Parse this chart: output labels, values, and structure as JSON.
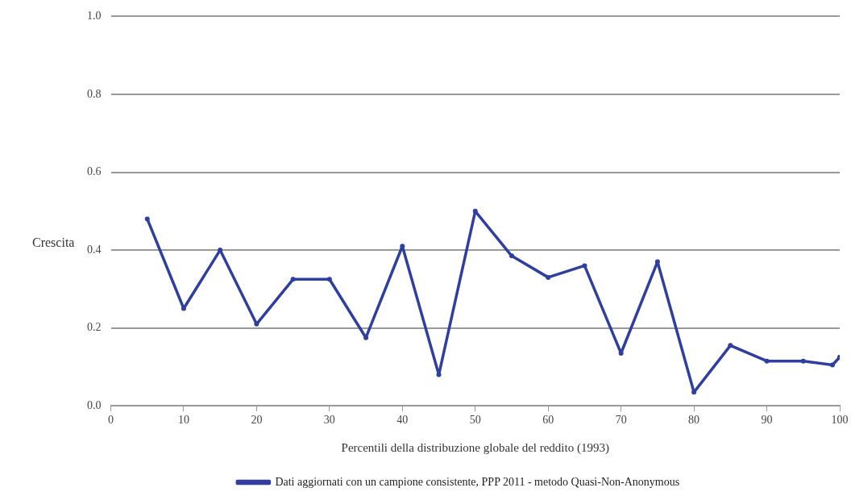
{
  "chart_data": {
    "type": "line",
    "xlabel": "Percentili della distribuzione globale del reddito (1993)",
    "ylabel": "Crescita",
    "x": [
      5,
      10,
      15,
      20,
      25,
      30,
      35,
      40,
      45,
      50,
      55,
      60,
      65,
      70,
      75,
      80,
      85,
      90,
      95,
      99,
      100
    ],
    "series": [
      {
        "name": "Dati aggiornati con un campione consistente, PPP 2011 - metodo Quasi-Non-Anonymous",
        "color": "#2e3fa0",
        "values": [
          0.48,
          0.25,
          0.4,
          0.21,
          0.325,
          0.325,
          0.175,
          0.41,
          0.08,
          0.5,
          0.385,
          0.33,
          0.36,
          0.135,
          0.37,
          0.035,
          0.155,
          0.115,
          0.115,
          0.105,
          0.125
        ]
      }
    ],
    "xlim": [
      0,
      100
    ],
    "xticks": [
      0,
      10,
      20,
      30,
      40,
      50,
      60,
      70,
      80,
      90,
      100
    ],
    "ylim": [
      0,
      1.0
    ],
    "yticks": [
      {
        "value": 0,
        "label": "0.0"
      },
      {
        "value": 0.2,
        "label": "0.2"
      },
      {
        "value": 0.4,
        "label": "0.4"
      },
      {
        "value": 0.6,
        "label": "0.6"
      },
      {
        "value": 0.8,
        "label": "0.8"
      },
      {
        "value": 1.0,
        "label": "1.0"
      }
    ],
    "grid": "y",
    "legend": "bottom",
    "marker": "circle",
    "line_style": "solid"
  }
}
